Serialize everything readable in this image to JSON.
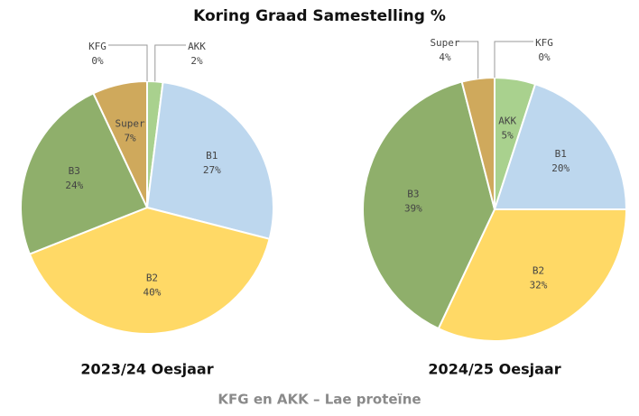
{
  "title": "Koring Graad Samestelling %",
  "footnote": "KFG en AKK – Lae proteïne",
  "chart_data": [
    {
      "type": "pie",
      "title": "2023/24 Oesjaar",
      "categories": [
        "AKK",
        "B1",
        "B2",
        "B3",
        "Super",
        "KFG"
      ],
      "values": [
        2,
        27,
        40,
        24,
        7,
        0
      ],
      "value_labels": [
        "2%",
        "27%",
        "40%",
        "24%",
        "7%",
        "0%"
      ],
      "colors": [
        "#a9d18e",
        "#bdd7ee",
        "#ffd966",
        "#8faf6b",
        "#cfa95c",
        "#b8b8a0"
      ]
    },
    {
      "type": "pie",
      "title": "2024/25 Oesjaar",
      "categories": [
        "AKK",
        "B1",
        "B2",
        "B3",
        "Super",
        "KFG"
      ],
      "values": [
        5,
        20,
        32,
        39,
        4,
        0
      ],
      "value_labels": [
        "5%",
        "20%",
        "32%",
        "39%",
        "4%",
        "0%"
      ],
      "colors": [
        "#a9d18e",
        "#bdd7ee",
        "#ffd966",
        "#8faf6b",
        "#cfa95c",
        "#b8b8a0"
      ]
    }
  ]
}
